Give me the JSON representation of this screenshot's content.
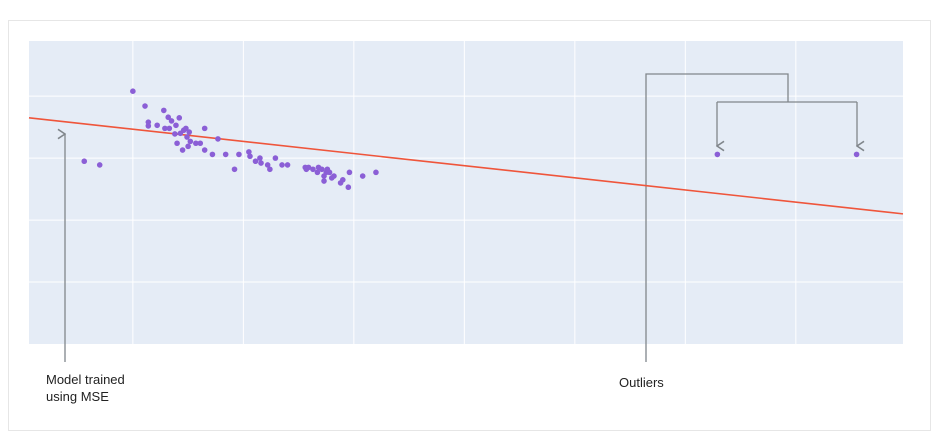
{
  "chart_data": {
    "type": "scatter",
    "points": {
      "color": "#8b5fd6",
      "x": [
        0.56,
        0.7,
        1.0,
        1.11,
        1.14,
        1.14,
        1.22,
        1.28,
        1.29,
        1.32,
        1.33,
        1.35,
        1.38,
        1.39,
        1.4,
        1.42,
        1.43,
        1.45,
        1.46,
        1.48,
        1.49,
        1.5,
        1.51,
        1.52,
        1.57,
        1.61,
        1.65,
        1.65,
        1.72,
        1.77,
        1.84,
        1.92,
        1.96,
        2.05,
        2.06,
        2.11,
        2.15,
        2.16,
        2.22,
        2.24,
        2.29,
        2.35,
        2.4,
        2.56,
        2.57,
        2.59,
        2.63,
        2.67,
        2.68,
        2.71,
        2.73,
        2.73,
        2.75,
        2.76,
        2.78,
        2.8,
        2.82,
        2.88,
        2.9,
        2.95,
        2.96,
        3.08,
        3.2,
        6.29,
        7.55
      ],
      "values": [
        2.95,
        2.89,
        4.08,
        3.84,
        3.58,
        3.52,
        3.53,
        3.77,
        3.48,
        3.66,
        3.48,
        3.6,
        3.39,
        3.53,
        3.24,
        3.65,
        3.4,
        3.13,
        3.45,
        3.48,
        3.34,
        3.19,
        3.42,
        3.27,
        3.24,
        3.24,
        3.48,
        3.13,
        3.06,
        3.31,
        3.06,
        2.82,
        3.06,
        3.1,
        3.03,
        2.95,
        3.0,
        2.92,
        2.89,
        2.82,
        3.0,
        2.89,
        2.89,
        2.85,
        2.82,
        2.85,
        2.82,
        2.77,
        2.85,
        2.82,
        2.63,
        2.71,
        2.77,
        2.82,
        2.77,
        2.68,
        2.71,
        2.6,
        2.65,
        2.53,
        2.77,
        2.71,
        2.77,
        3.06,
        3.06
      ]
    },
    "fit_line": {
      "color": "#ef553b",
      "x": [
        0.06,
        7.97
      ],
      "values": [
        3.65,
        2.1
      ]
    },
    "xlim": [
      0.06,
      7.97
    ],
    "ylim": [
      0,
      4.89
    ],
    "xticks": [
      1,
      2,
      3,
      4,
      5,
      6,
      7
    ],
    "yticks": [
      1,
      2,
      3,
      4
    ],
    "grid": true,
    "background": "#e5ecf6",
    "annotations": [
      "Model trained using MSE",
      "Outliers"
    ]
  }
}
